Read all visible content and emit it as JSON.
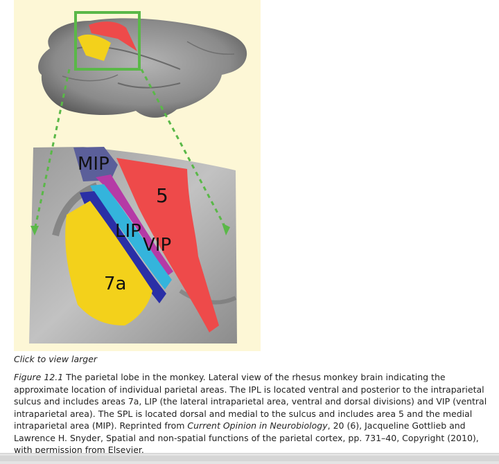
{
  "figure": {
    "labels": {
      "mip": "MIP",
      "area5": "5",
      "lip": "LIP",
      "vip": "VIP",
      "area7a": "7a"
    },
    "colors": {
      "background": "#fdf7d6",
      "mip": "#5b5f9a",
      "area5": "#ee4a4a",
      "lip_ventral": "#2a2fa6",
      "lip_dorsal": "#34b4dc",
      "vip": "#b53aa6",
      "area7a": "#f3d11b",
      "zoom_box": "#5ab848"
    }
  },
  "click_text": "Click to view larger",
  "caption": {
    "label": "Figure 12.1",
    "text_1": " The parietal lobe in the monkey. Lateral view of the rhesus monkey brain indicating the approximate location of individual parietal areas. The IPL is located ventral and posterior to the intraparietal sulcus and includes areas 7a, LIP (the lateral intraparietal area, ventral and dorsal divisions) and VIP (ventral intraparietal area). The SPL is located dorsal and medial to the sulcus and includes area 5 and the medial intraparietal area (MIP). Reprinted from ",
    "journal": "Current Opinion in Neurobiology",
    "text_2": ", 20 (6), Jacqueline Gottlieb and Lawrence H. Snyder, Spatial and non-spatial functions of the parietal cortex, pp. 731–40, Copyright (2010), with permission from Elsevier."
  }
}
